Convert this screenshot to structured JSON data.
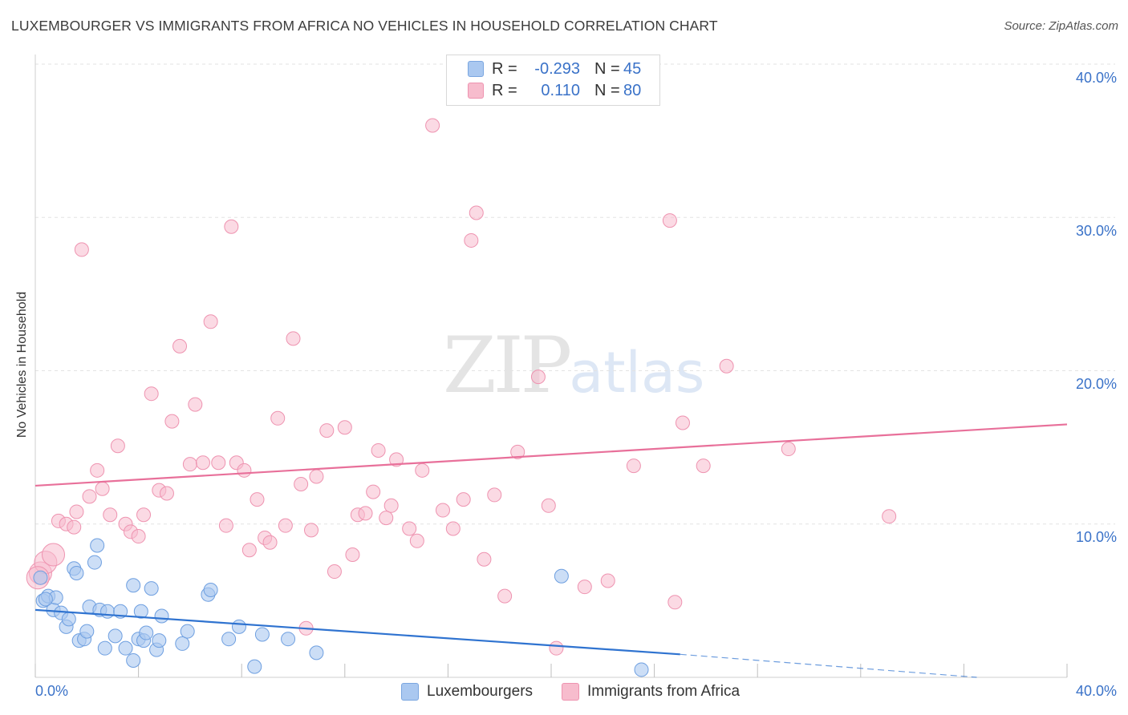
{
  "header": {
    "title": "LUXEMBOURGER VS IMMIGRANTS FROM AFRICA NO VEHICLES IN HOUSEHOLD CORRELATION CHART",
    "source": "Source: ZipAtlas.com"
  },
  "watermark": {
    "zip": "ZIP",
    "atlas": "atlas"
  },
  "legend_top": {
    "rows": [
      {
        "r_label": "R =",
        "r_value": "-0.293",
        "n_label": "N =",
        "n_value": "45"
      },
      {
        "r_label": "R =",
        "r_value": "0.110",
        "n_label": "N =",
        "n_value": "80"
      }
    ]
  },
  "legend_bottom": {
    "series1": "Luxembourgers",
    "series2": "Immigrants from Africa"
  },
  "axes": {
    "ylabel": "No Vehicles in Household",
    "x_min_label": "0.0%",
    "x_max_label": "40.0%",
    "y_ticks": [
      "10.0%",
      "20.0%",
      "30.0%",
      "40.0%"
    ]
  },
  "colors": {
    "blue_fill": "#aac8f0",
    "blue_stroke": "#6e9fe0",
    "blue_line": "#2f73d0",
    "pink_fill": "#f7bccd",
    "pink_stroke": "#ee93b0",
    "pink_line": "#e8709a",
    "grid": "#e3e3e3",
    "tick_text": "#3a72c8"
  },
  "chart_data": {
    "type": "scatter",
    "xlim": [
      0,
      40
    ],
    "ylim": [
      0,
      40
    ],
    "x_unit": "%",
    "y_unit": "%",
    "grid": true,
    "series": [
      {
        "name": "Luxembourgers",
        "r": -0.293,
        "n": 45,
        "trend": {
          "x": [
            0,
            25,
            40
          ],
          "y": [
            4.4,
            1.5,
            -0.2
          ],
          "solid_until_x": 25
        },
        "points": [
          [
            0.2,
            6.5
          ],
          [
            0.3,
            5.0
          ],
          [
            0.5,
            5.3
          ],
          [
            0.7,
            4.4
          ],
          [
            0.8,
            5.2
          ],
          [
            1.0,
            4.2
          ],
          [
            1.2,
            3.3
          ],
          [
            1.3,
            3.8
          ],
          [
            1.5,
            7.1
          ],
          [
            1.6,
            6.8
          ],
          [
            1.7,
            2.4
          ],
          [
            1.9,
            2.5
          ],
          [
            2.0,
            3.0
          ],
          [
            2.1,
            4.6
          ],
          [
            2.3,
            7.5
          ],
          [
            2.4,
            8.6
          ],
          [
            2.5,
            4.4
          ],
          [
            2.7,
            1.9
          ],
          [
            2.8,
            4.3
          ],
          [
            3.1,
            2.7
          ],
          [
            3.3,
            4.3
          ],
          [
            3.5,
            1.9
          ],
          [
            3.8,
            1.1
          ],
          [
            3.8,
            6.0
          ],
          [
            4.0,
            2.5
          ],
          [
            4.1,
            4.3
          ],
          [
            4.2,
            2.4
          ],
          [
            4.3,
            2.9
          ],
          [
            4.5,
            5.8
          ],
          [
            4.7,
            1.8
          ],
          [
            4.8,
            2.4
          ],
          [
            4.9,
            4.0
          ],
          [
            5.7,
            2.2
          ],
          [
            5.9,
            3.0
          ],
          [
            6.7,
            5.4
          ],
          [
            6.8,
            5.7
          ],
          [
            7.5,
            2.5
          ],
          [
            7.9,
            3.3
          ],
          [
            8.5,
            0.7
          ],
          [
            8.8,
            2.8
          ],
          [
            9.8,
            2.5
          ],
          [
            10.9,
            1.6
          ],
          [
            20.4,
            6.6
          ],
          [
            23.5,
            0.5
          ],
          [
            0.4,
            5.1
          ]
        ]
      },
      {
        "name": "Immigrants from Africa",
        "r": 0.11,
        "n": 80,
        "trend": {
          "x": [
            0,
            40
          ],
          "y": [
            12.5,
            16.5
          ]
        },
        "points": [
          [
            0.2,
            6.8
          ],
          [
            0.4,
            7.5
          ],
          [
            0.7,
            8.0
          ],
          [
            0.9,
            10.2
          ],
          [
            1.2,
            10.0
          ],
          [
            1.5,
            9.8
          ],
          [
            1.8,
            27.9
          ],
          [
            2.1,
            11.8
          ],
          [
            2.4,
            13.5
          ],
          [
            2.6,
            12.3
          ],
          [
            2.9,
            10.6
          ],
          [
            3.2,
            15.1
          ],
          [
            3.5,
            10.0
          ],
          [
            3.7,
            9.5
          ],
          [
            4.0,
            9.2
          ],
          [
            4.2,
            10.6
          ],
          [
            4.5,
            18.5
          ],
          [
            4.8,
            12.2
          ],
          [
            5.1,
            12.0
          ],
          [
            5.3,
            16.7
          ],
          [
            5.6,
            21.6
          ],
          [
            6.0,
            13.9
          ],
          [
            6.2,
            17.8
          ],
          [
            6.5,
            14.0
          ],
          [
            6.8,
            23.2
          ],
          [
            7.1,
            14.0
          ],
          [
            7.4,
            9.9
          ],
          [
            7.6,
            29.4
          ],
          [
            7.8,
            14.0
          ],
          [
            8.1,
            13.5
          ],
          [
            8.3,
            8.3
          ],
          [
            8.6,
            11.6
          ],
          [
            8.9,
            9.1
          ],
          [
            9.1,
            8.8
          ],
          [
            9.4,
            16.9
          ],
          [
            9.7,
            9.9
          ],
          [
            10.0,
            22.1
          ],
          [
            10.3,
            12.6
          ],
          [
            10.5,
            3.2
          ],
          [
            10.7,
            9.6
          ],
          [
            10.9,
            13.1
          ],
          [
            11.3,
            16.1
          ],
          [
            11.6,
            6.9
          ],
          [
            12.0,
            16.3
          ],
          [
            12.3,
            8.0
          ],
          [
            12.5,
            10.6
          ],
          [
            12.8,
            10.7
          ],
          [
            13.1,
            12.1
          ],
          [
            13.3,
            14.8
          ],
          [
            13.6,
            10.4
          ],
          [
            13.8,
            11.2
          ],
          [
            14.0,
            14.2
          ],
          [
            14.5,
            9.7
          ],
          [
            14.8,
            8.9
          ],
          [
            15.0,
            13.5
          ],
          [
            15.4,
            36.0
          ],
          [
            15.8,
            10.9
          ],
          [
            16.2,
            9.7
          ],
          [
            16.6,
            11.6
          ],
          [
            16.9,
            28.5
          ],
          [
            17.1,
            30.3
          ],
          [
            17.4,
            7.7
          ],
          [
            17.8,
            11.9
          ],
          [
            18.2,
            5.3
          ],
          [
            18.7,
            14.7
          ],
          [
            19.5,
            19.6
          ],
          [
            19.9,
            11.2
          ],
          [
            20.2,
            1.9
          ],
          [
            21.3,
            5.9
          ],
          [
            22.2,
            6.3
          ],
          [
            23.2,
            13.8
          ],
          [
            24.6,
            29.8
          ],
          [
            24.8,
            4.9
          ],
          [
            25.1,
            16.6
          ],
          [
            25.9,
            13.8
          ],
          [
            26.8,
            20.3
          ],
          [
            29.2,
            14.9
          ],
          [
            33.1,
            10.5
          ],
          [
            0.1,
            6.5
          ],
          [
            1.6,
            10.8
          ]
        ]
      }
    ]
  }
}
